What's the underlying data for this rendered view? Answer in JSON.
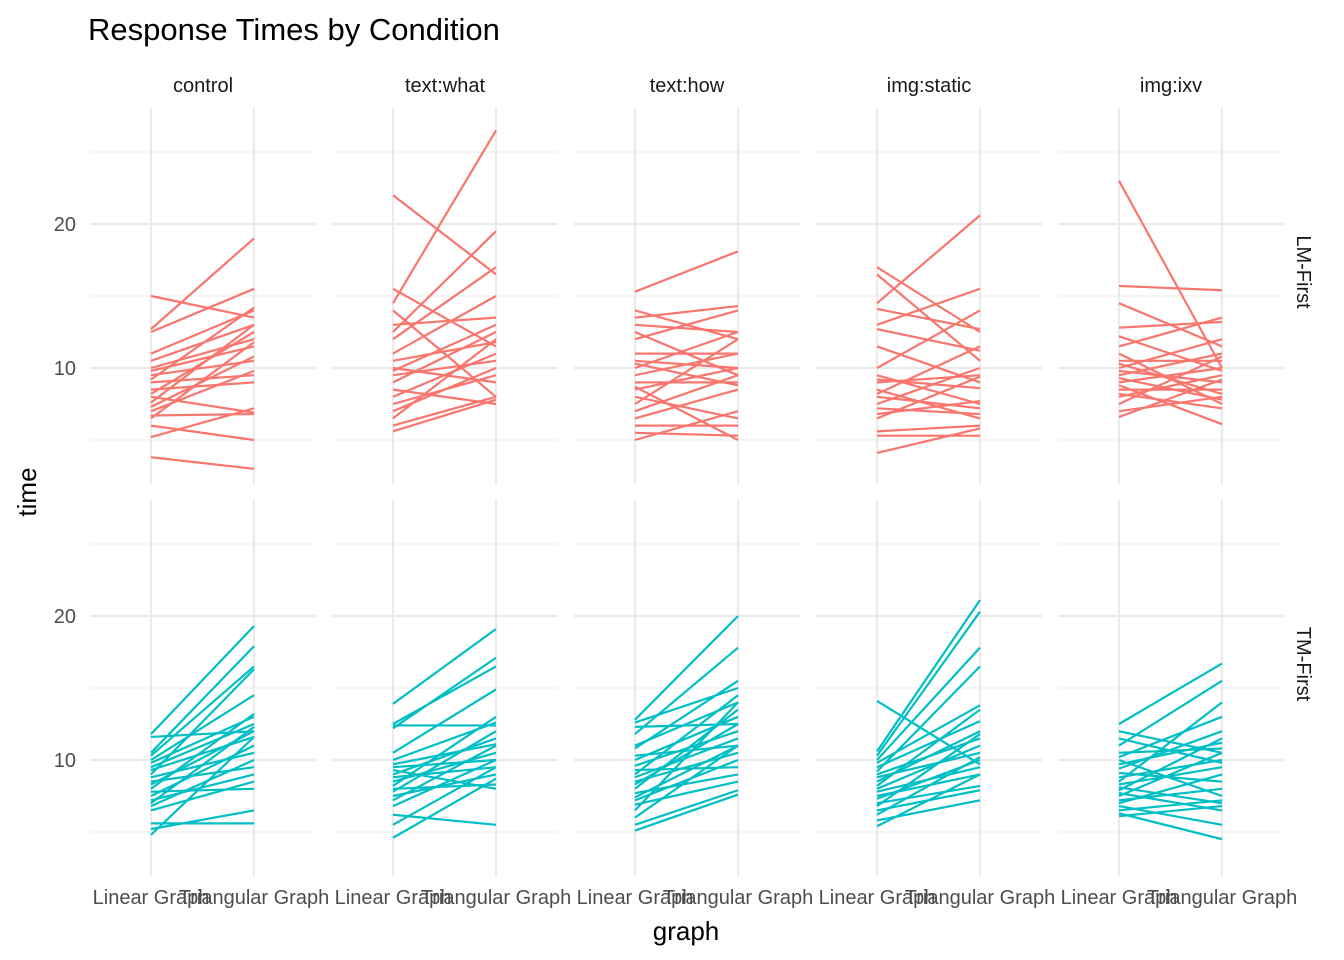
{
  "chart_data": {
    "type": "line",
    "title": "Response Times by Condition",
    "xlabel": "graph",
    "ylabel": "time",
    "x_categories": [
      "Linear Graph",
      "Triangular Graph"
    ],
    "y_ticks": [
      10,
      20
    ],
    "ylim": [
      2,
      28
    ],
    "grid": true,
    "legend": "none",
    "columns": [
      "control",
      "text:what",
      "text:how",
      "img:static",
      "img:ixv"
    ],
    "rows": [
      {
        "label": "LM-First",
        "color": "#F8766D"
      },
      {
        "label": "TM-First",
        "color": "#00BFC4"
      }
    ],
    "panels": [
      {
        "row": "LM-First",
        "column": "control",
        "lines": [
          [
            15,
            13.5
          ],
          [
            12.7,
            19
          ],
          [
            12.5,
            15.5
          ],
          [
            11,
            14
          ],
          [
            10.5,
            13
          ],
          [
            10,
            12
          ],
          [
            9.8,
            11.5
          ],
          [
            9.5,
            10.5
          ],
          [
            9.2,
            14.2
          ],
          [
            9,
            9.5
          ],
          [
            8.5,
            9
          ],
          [
            8.2,
            12.5
          ],
          [
            8,
            6.9
          ],
          [
            7.6,
            13
          ],
          [
            7.3,
            10.8
          ],
          [
            7,
            9.8
          ],
          [
            6.7,
            6.8
          ],
          [
            6.5,
            11.8
          ],
          [
            6,
            5
          ],
          [
            5.2,
            7.2
          ],
          [
            3.8,
            3
          ]
        ]
      },
      {
        "row": "LM-First",
        "column": "text:what",
        "lines": [
          [
            22,
            16.5
          ],
          [
            15.5,
            11.5
          ],
          [
            14.5,
            26.5
          ],
          [
            14,
            8
          ],
          [
            13,
            13.5
          ],
          [
            12.5,
            19.5
          ],
          [
            12,
            17
          ],
          [
            11,
            15
          ],
          [
            10.5,
            11.8
          ],
          [
            10,
            9
          ],
          [
            9.8,
            13
          ],
          [
            9.5,
            10.5
          ],
          [
            9,
            12.5
          ],
          [
            8.5,
            7.5
          ],
          [
            8,
            11
          ],
          [
            7.5,
            9.5
          ],
          [
            7,
            10
          ],
          [
            6.5,
            12
          ],
          [
            6,
            8
          ],
          [
            5.6,
            7.8
          ]
        ]
      },
      {
        "row": "LM-First",
        "column": "text:how",
        "lines": [
          [
            15.3,
            18.1
          ],
          [
            14,
            12
          ],
          [
            13.5,
            14.3
          ],
          [
            13,
            12.5
          ],
          [
            12.5,
            9.5
          ],
          [
            12,
            14
          ],
          [
            11,
            11
          ],
          [
            10.5,
            10
          ],
          [
            10.3,
            8.8
          ],
          [
            10,
            12.5
          ],
          [
            9.5,
            11
          ],
          [
            9,
            9
          ],
          [
            8.7,
            5
          ],
          [
            8.5,
            10
          ],
          [
            8,
            6.5
          ],
          [
            7.5,
            12
          ],
          [
            7,
            9.5
          ],
          [
            6.5,
            8.5
          ],
          [
            6,
            6
          ],
          [
            5.5,
            5.3
          ],
          [
            5,
            7
          ]
        ]
      },
      {
        "row": "LM-First",
        "column": "img:static",
        "lines": [
          [
            17,
            12.5
          ],
          [
            16.5,
            10.5
          ],
          [
            14.5,
            20.6
          ],
          [
            14.1,
            12.7
          ],
          [
            13,
            15.5
          ],
          [
            12.7,
            11.2
          ],
          [
            11.5,
            9
          ],
          [
            10,
            14
          ],
          [
            9.5,
            7.5
          ],
          [
            9.2,
            8.6
          ],
          [
            9,
            9.5
          ],
          [
            8.5,
            6.5
          ],
          [
            8.2,
            11.5
          ],
          [
            8,
            7.2
          ],
          [
            7.5,
            10
          ],
          [
            7.2,
            6.8
          ],
          [
            6.8,
            7.7
          ],
          [
            6.5,
            9.4
          ],
          [
            5.6,
            6
          ],
          [
            5.3,
            5.3
          ],
          [
            4.1,
            5.8
          ]
        ]
      },
      {
        "row": "LM-First",
        "column": "img:ixv",
        "lines": [
          [
            23,
            10
          ],
          [
            15.7,
            15.4
          ],
          [
            14.5,
            11.5
          ],
          [
            12.8,
            13.2
          ],
          [
            12.2,
            9.8
          ],
          [
            11.5,
            13.5
          ],
          [
            11,
            7.5
          ],
          [
            10.5,
            10.5
          ],
          [
            10.3,
            8.2
          ],
          [
            10,
            12
          ],
          [
            9.8,
            9
          ],
          [
            9.5,
            11
          ],
          [
            9.3,
            7.8
          ],
          [
            9,
            10
          ],
          [
            8.8,
            6.1
          ],
          [
            8.5,
            8.5
          ],
          [
            8.2,
            7.2
          ],
          [
            8,
            9.5
          ],
          [
            7.5,
            10.8
          ],
          [
            7,
            8
          ],
          [
            6.6,
            9.2
          ]
        ]
      },
      {
        "row": "TM-First",
        "column": "control",
        "lines": [
          [
            11.8,
            19.3
          ],
          [
            11.6,
            12
          ],
          [
            10.5,
            17.9
          ],
          [
            10.3,
            16.5
          ],
          [
            10,
            14.5
          ],
          [
            9.8,
            13
          ],
          [
            9.5,
            12.5
          ],
          [
            9.3,
            11.6
          ],
          [
            9,
            16.3
          ],
          [
            8.8,
            10.5
          ],
          [
            8.5,
            9.5
          ],
          [
            8.3,
            12
          ],
          [
            8,
            13.2
          ],
          [
            7.8,
            8
          ],
          [
            7.5,
            11
          ],
          [
            7.2,
            9
          ],
          [
            7,
            12.3
          ],
          [
            6.8,
            10
          ],
          [
            6.5,
            8.5
          ],
          [
            5.6,
            5.6
          ],
          [
            5.2,
            6.5
          ],
          [
            4.8,
            11.6
          ]
        ]
      },
      {
        "row": "TM-First",
        "column": "text:what",
        "lines": [
          [
            13.9,
            19.1
          ],
          [
            12.5,
            16.5
          ],
          [
            12.4,
            12.4
          ],
          [
            12.2,
            17.1
          ],
          [
            10.5,
            14.9
          ],
          [
            10,
            12.6
          ],
          [
            9.7,
            11.1
          ],
          [
            9.5,
            10
          ],
          [
            9.3,
            8
          ],
          [
            9,
            11.5
          ],
          [
            8.8,
            9.5
          ],
          [
            8.5,
            10.5
          ],
          [
            8.2,
            13
          ],
          [
            8,
            8.3
          ],
          [
            7.8,
            12
          ],
          [
            7.5,
            9
          ],
          [
            7.2,
            11
          ],
          [
            6.8,
            10
          ],
          [
            6.2,
            5.5
          ],
          [
            5.5,
            9.5
          ],
          [
            4.6,
            8.7
          ]
        ]
      },
      {
        "row": "TM-First",
        "column": "text:how",
        "lines": [
          [
            12.8,
            20
          ],
          [
            12.6,
            15
          ],
          [
            12.3,
            12.5
          ],
          [
            11.8,
            17.8
          ],
          [
            11,
            14
          ],
          [
            10.8,
            15.5
          ],
          [
            10.3,
            11
          ],
          [
            10,
            13
          ],
          [
            9.6,
            12
          ],
          [
            9.3,
            9.5
          ],
          [
            9,
            14.5
          ],
          [
            8.8,
            11.5
          ],
          [
            8.5,
            10.5
          ],
          [
            8.3,
            12.5
          ],
          [
            8,
            13.5
          ],
          [
            7.7,
            9
          ],
          [
            7.4,
            11
          ],
          [
            7.2,
            10
          ],
          [
            6.9,
            8.5
          ],
          [
            6.5,
            14
          ],
          [
            6,
            11
          ],
          [
            5.5,
            7.9
          ],
          [
            5.1,
            7.6
          ]
        ]
      },
      {
        "row": "TM-First",
        "column": "img:static",
        "lines": [
          [
            14.1,
            9.7
          ],
          [
            10.6,
            21.1
          ],
          [
            10.3,
            20.3
          ],
          [
            10,
            17.8
          ],
          [
            9.8,
            13.8
          ],
          [
            9.5,
            12.7
          ],
          [
            9.2,
            16.5
          ],
          [
            9,
            11.5
          ],
          [
            8.8,
            10.5
          ],
          [
            8.5,
            12
          ],
          [
            8.2,
            13.5
          ],
          [
            8,
            11
          ],
          [
            7.8,
            9.5
          ],
          [
            7.5,
            9
          ],
          [
            7.3,
            10
          ],
          [
            7,
            8.2
          ],
          [
            6.8,
            11.8
          ],
          [
            6.5,
            7.9
          ],
          [
            6.2,
            10.2
          ],
          [
            5.8,
            7.2
          ],
          [
            5.4,
            9
          ]
        ]
      },
      {
        "row": "TM-First",
        "column": "img:ixv",
        "lines": [
          [
            12.5,
            16.7
          ],
          [
            12,
            10.5
          ],
          [
            11.5,
            9.8
          ],
          [
            11,
            15.5
          ],
          [
            10.5,
            10.8
          ],
          [
            10.2,
            13
          ],
          [
            10,
            7.5
          ],
          [
            9.7,
            11.2
          ],
          [
            9.4,
            12
          ],
          [
            9.1,
            8.5
          ],
          [
            8.8,
            10
          ],
          [
            8.5,
            14
          ],
          [
            8.3,
            9.5
          ],
          [
            8.1,
            7
          ],
          [
            7.9,
            11.5
          ],
          [
            7.7,
            6.5
          ],
          [
            7.5,
            10.5
          ],
          [
            7.2,
            8
          ],
          [
            7,
            9
          ],
          [
            6.8,
            5.5
          ],
          [
            6.5,
            7.2
          ],
          [
            6.3,
            4.5
          ],
          [
            6.1,
            6.8
          ]
        ]
      }
    ]
  }
}
